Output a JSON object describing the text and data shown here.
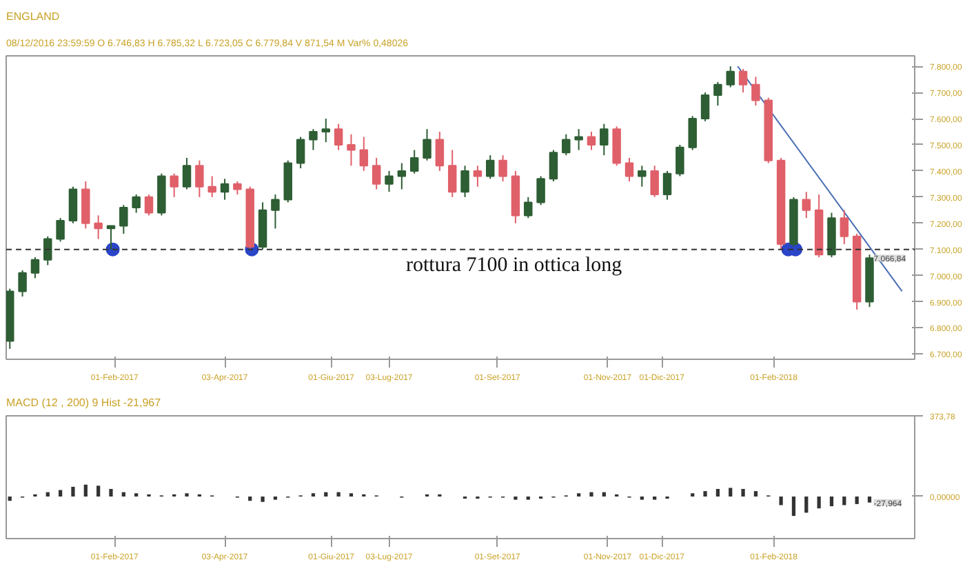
{
  "chart_data": [
    {
      "type": "candlestick",
      "title": "ENGLAND",
      "subtitle": "08/12/2016  23:59:59  O 6.746,83  H 6.785,32  L 6.723,05  C 6.779,84  V 871,54 M  Var% 0,48026",
      "x": [
        "2016-12-05",
        "2016-12-12",
        "2016-12-19",
        "2016-12-26",
        "2017-01-02",
        "2017-01-09",
        "2017-01-16",
        "2017-01-23",
        "2017-01-30",
        "2017-02-06",
        "2017-02-13",
        "2017-02-20",
        "2017-02-27",
        "2017-03-06",
        "2017-03-13",
        "2017-03-20",
        "2017-03-27",
        "2017-04-03",
        "2017-04-10",
        "2017-04-17",
        "2017-04-24",
        "2017-05-01",
        "2017-05-08",
        "2017-05-15",
        "2017-05-22",
        "2017-05-29",
        "2017-06-05",
        "2017-06-12",
        "2017-06-19",
        "2017-06-26",
        "2017-07-03",
        "2017-07-10",
        "2017-07-17",
        "2017-07-24",
        "2017-07-31",
        "2017-08-07",
        "2017-08-14",
        "2017-08-21",
        "2017-08-28",
        "2017-09-04",
        "2017-09-11",
        "2017-09-18",
        "2017-09-25",
        "2017-10-02",
        "2017-10-09",
        "2017-10-16",
        "2017-10-23",
        "2017-10-30",
        "2017-11-06",
        "2017-11-13",
        "2017-11-20",
        "2017-11-27",
        "2017-12-04",
        "2017-12-11",
        "2017-12-18",
        "2017-12-25",
        "2018-01-01",
        "2018-01-08",
        "2018-01-15",
        "2018-01-22",
        "2018-01-29",
        "2018-02-05",
        "2018-02-12",
        "2018-02-19",
        "2018-02-26",
        "2018-03-05",
        "2018-03-12",
        "2018-03-19",
        "2018-03-26"
      ],
      "ohlc": [
        [
          6750,
          6950,
          6720,
          6940
        ],
        [
          6940,
          7020,
          6920,
          7010
        ],
        [
          7010,
          7070,
          6990,
          7060
        ],
        [
          7060,
          7150,
          7040,
          7140
        ],
        [
          7140,
          7220,
          7130,
          7210
        ],
        [
          7210,
          7340,
          7200,
          7330
        ],
        [
          7330,
          7360,
          7180,
          7200
        ],
        [
          7200,
          7230,
          7140,
          7180
        ],
        [
          7180,
          7190,
          7100,
          7190
        ],
        [
          7190,
          7270,
          7160,
          7260
        ],
        [
          7260,
          7310,
          7240,
          7300
        ],
        [
          7300,
          7310,
          7230,
          7240
        ],
        [
          7240,
          7390,
          7230,
          7380
        ],
        [
          7380,
          7390,
          7300,
          7340
        ],
        [
          7340,
          7450,
          7330,
          7420
        ],
        [
          7420,
          7440,
          7300,
          7340
        ],
        [
          7340,
          7380,
          7300,
          7320
        ],
        [
          7320,
          7370,
          7290,
          7350
        ],
        [
          7350,
          7360,
          7310,
          7330
        ],
        [
          7330,
          7340,
          7100,
          7110
        ],
        [
          7110,
          7280,
          7100,
          7250
        ],
        [
          7250,
          7310,
          7180,
          7290
        ],
        [
          7290,
          7440,
          7280,
          7430
        ],
        [
          7430,
          7530,
          7410,
          7520
        ],
        [
          7520,
          7560,
          7480,
          7550
        ],
        [
          7550,
          7600,
          7510,
          7560
        ],
        [
          7560,
          7580,
          7480,
          7500
        ],
        [
          7500,
          7540,
          7420,
          7480
        ],
        [
          7480,
          7530,
          7400,
          7420
        ],
        [
          7420,
          7450,
          7330,
          7350
        ],
        [
          7350,
          7400,
          7320,
          7380
        ],
        [
          7380,
          7430,
          7330,
          7400
        ],
        [
          7400,
          7480,
          7390,
          7450
        ],
        [
          7450,
          7560,
          7440,
          7520
        ],
        [
          7520,
          7550,
          7400,
          7420
        ],
        [
          7420,
          7480,
          7300,
          7320
        ],
        [
          7320,
          7420,
          7300,
          7400
        ],
        [
          7400,
          7420,
          7340,
          7380
        ],
        [
          7380,
          7460,
          7370,
          7440
        ],
        [
          7440,
          7460,
          7360,
          7380
        ],
        [
          7380,
          7400,
          7200,
          7230
        ],
        [
          7230,
          7300,
          7220,
          7280
        ],
        [
          7280,
          7380,
          7270,
          7370
        ],
        [
          7370,
          7480,
          7360,
          7470
        ],
        [
          7470,
          7540,
          7460,
          7520
        ],
        [
          7520,
          7560,
          7480,
          7530
        ],
        [
          7530,
          7550,
          7480,
          7500
        ],
        [
          7500,
          7580,
          7460,
          7560
        ],
        [
          7560,
          7570,
          7420,
          7430
        ],
        [
          7430,
          7450,
          7360,
          7380
        ],
        [
          7380,
          7420,
          7340,
          7400
        ],
        [
          7400,
          7420,
          7300,
          7310
        ],
        [
          7310,
          7400,
          7290,
          7390
        ],
        [
          7390,
          7500,
          7380,
          7490
        ],
        [
          7490,
          7610,
          7480,
          7600
        ],
        [
          7600,
          7700,
          7590,
          7690
        ],
        [
          7690,
          7740,
          7650,
          7730
        ],
        [
          7730,
          7800,
          7720,
          7780
        ],
        [
          7780,
          7790,
          7700,
          7730
        ],
        [
          7730,
          7760,
          7650,
          7670
        ],
        [
          7670,
          7680,
          7430,
          7440
        ],
        [
          7440,
          7450,
          7100,
          7120
        ],
        [
          7120,
          7300,
          7110,
          7290
        ],
        [
          7290,
          7320,
          7220,
          7250
        ],
        [
          7250,
          7310,
          7070,
          7080
        ],
        [
          7080,
          7240,
          7070,
          7220
        ],
        [
          7220,
          7250,
          7120,
          7150
        ],
        [
          7150,
          7160,
          6870,
          6900
        ],
        [
          6900,
          7080,
          6880,
          7066.84
        ]
      ],
      "series": [
        {
          "type": "line",
          "x": [
            "2018-01-12",
            "2018-04-13"
          ],
          "values": [
            7800,
            6940
          ],
          "color": "#4a6fb5"
        },
        {
          "type": "scatter",
          "x": [
            "2017-01-31",
            "2017-04-18",
            "2018-02-09",
            "2018-02-13"
          ],
          "values": [
            7100,
            7100,
            7100,
            7100
          ],
          "color": "#2a45c8"
        }
      ],
      "ref_lines": [
        {
          "axis": "y",
          "value": 7100,
          "color": "#333333",
          "line_style": "dashed"
        }
      ],
      "annotations": [
        "rottura 7100 in ottica long",
        {
          "text": "7.066,84",
          "x": "2018-03-26",
          "y": 7066.84
        }
      ],
      "xlim": [
        "2016-12-03",
        "2018-04-20"
      ],
      "ylim": [
        6680,
        7840
      ],
      "xticks": [
        {
          "value": "2017-02-01",
          "label": "01-Feb-2017"
        },
        {
          "value": "2017-04-03",
          "label": "03-Apr-2017"
        },
        {
          "value": "2017-06-01",
          "label": "01-Giu-2017"
        },
        {
          "value": "2017-07-03",
          "label": "03-Lug-2017"
        },
        {
          "value": "2017-09-01",
          "label": "01-Set-2017"
        },
        {
          "value": "2017-11-01",
          "label": "01-Nov-2017"
        },
        {
          "value": "2017-12-01",
          "label": "01-Dic-2017"
        },
        {
          "value": "2018-02-01",
          "label": "01-Feb-2018"
        }
      ],
      "yticks": [
        {
          "value": 6700,
          "label": "6.700,00"
        },
        {
          "value": 6800,
          "label": "6.800,00"
        },
        {
          "value": 6900,
          "label": "6.900,00"
        },
        {
          "value": 7000,
          "label": "7.000,00"
        },
        {
          "value": 7100,
          "label": "7.100,00"
        },
        {
          "value": 7200,
          "label": "7.200,00"
        },
        {
          "value": 7300,
          "label": "7.300,00"
        },
        {
          "value": 7400,
          "label": "7.400,00"
        },
        {
          "value": 7500,
          "label": "7.500,00"
        },
        {
          "value": 7600,
          "label": "7.600,00"
        },
        {
          "value": 7700,
          "label": "7.700,00"
        },
        {
          "value": 7800,
          "label": "7.800,00"
        }
      ]
    },
    {
      "type": "bar",
      "title": "MACD   (12 , 200)   9   Hist  -21,967",
      "x": [
        "2016-12-05",
        "2016-12-12",
        "2016-12-19",
        "2016-12-26",
        "2017-01-02",
        "2017-01-09",
        "2017-01-16",
        "2017-01-23",
        "2017-01-30",
        "2017-02-06",
        "2017-02-13",
        "2017-02-20",
        "2017-02-27",
        "2017-03-06",
        "2017-03-13",
        "2017-03-20",
        "2017-03-27",
        "2017-04-03",
        "2017-04-10",
        "2017-04-17",
        "2017-04-24",
        "2017-05-01",
        "2017-05-08",
        "2017-05-15",
        "2017-05-22",
        "2017-05-29",
        "2017-06-05",
        "2017-06-12",
        "2017-06-19",
        "2017-06-26",
        "2017-07-03",
        "2017-07-10",
        "2017-07-17",
        "2017-07-24",
        "2017-07-31",
        "2017-08-07",
        "2017-08-14",
        "2017-08-21",
        "2017-08-28",
        "2017-09-04",
        "2017-09-11",
        "2017-09-18",
        "2017-09-25",
        "2017-10-02",
        "2017-10-09",
        "2017-10-16",
        "2017-10-23",
        "2017-10-30",
        "2017-11-06",
        "2017-11-13",
        "2017-11-20",
        "2017-11-27",
        "2017-12-04",
        "2017-12-11",
        "2017-12-18",
        "2017-12-25",
        "2018-01-01",
        "2018-01-08",
        "2018-01-15",
        "2018-01-22",
        "2018-01-29",
        "2018-02-05",
        "2018-02-12",
        "2018-02-19",
        "2018-02-26",
        "2018-03-05",
        "2018-03-12",
        "2018-03-19",
        "2018-03-26"
      ],
      "values": [
        -20,
        -5,
        10,
        20,
        30,
        45,
        55,
        50,
        35,
        20,
        15,
        10,
        5,
        10,
        15,
        10,
        5,
        0,
        -5,
        -20,
        -25,
        -15,
        -5,
        5,
        15,
        20,
        20,
        15,
        10,
        5,
        0,
        -5,
        0,
        10,
        10,
        0,
        -10,
        -10,
        -5,
        -5,
        -15,
        -15,
        -10,
        -5,
        5,
        15,
        20,
        20,
        10,
        -5,
        -15,
        -15,
        -10,
        0,
        15,
        25,
        35,
        40,
        35,
        25,
        5,
        -40,
        -90,
        -75,
        -55,
        -45,
        -40,
        -35,
        -27.964
      ],
      "color": "#333333",
      "annotations": [
        {
          "text": "-27,964",
          "x": "2018-03-26",
          "y": -27.964
        }
      ],
      "xlim": [
        "2016-12-03",
        "2018-04-20"
      ],
      "ylim": [
        -195,
        373.78
      ],
      "xticks": [
        {
          "value": "2017-02-01",
          "label": "01-Feb-2017"
        },
        {
          "value": "2017-04-03",
          "label": "03-Apr-2017"
        },
        {
          "value": "2017-06-01",
          "label": "01-Giu-2017"
        },
        {
          "value": "2017-07-03",
          "label": "03-Lug-2017"
        },
        {
          "value": "2017-09-01",
          "label": "01-Set-2017"
        },
        {
          "value": "2017-11-01",
          "label": "01-Nov-2017"
        },
        {
          "value": "2017-12-01",
          "label": "01-Dic-2017"
        },
        {
          "value": "2018-02-01",
          "label": "01-Feb-2018"
        }
      ],
      "yticks": [
        {
          "value": 0,
          "label": "0,00000"
        },
        {
          "value": 373.78,
          "label": "373,78"
        }
      ]
    }
  ]
}
